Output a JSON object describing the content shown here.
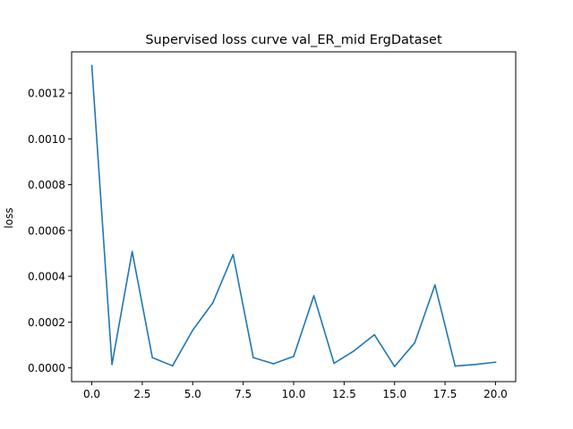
{
  "chart_data": {
    "type": "line",
    "title": "Supervised loss curve val_ER_mid ErgDataset",
    "xlabel": "",
    "ylabel": "loss",
    "xlim": [
      -1,
      21
    ],
    "ylim": [
      -6e-05,
      0.00138
    ],
    "xticks": [
      0,
      2.5,
      5,
      7.5,
      10,
      12.5,
      15,
      17.5,
      20
    ],
    "xtick_labels": [
      "0.0",
      "2.5",
      "5.0",
      "7.5",
      "10.0",
      "12.5",
      "15.0",
      "17.5",
      "20.0"
    ],
    "yticks": [
      0,
      0.0002,
      0.0004,
      0.0006,
      0.0008,
      0.001,
      0.0012
    ],
    "ytick_labels": [
      "0.0000",
      "0.0002",
      "0.0004",
      "0.0006",
      "0.0008",
      "0.0010",
      "0.0012"
    ],
    "grid": false,
    "legend": false,
    "series": [
      {
        "color": "#1f77b4",
        "x": [
          0,
          1,
          2,
          3,
          4,
          5,
          6,
          7,
          8,
          9,
          10,
          11,
          12,
          13,
          14,
          15,
          16,
          17,
          18,
          19,
          20
        ],
        "values": [
          0.00132,
          1.5e-05,
          0.000508,
          4.5e-05,
          9e-06,
          0.000165,
          0.000285,
          0.000495,
          4.5e-05,
          1.8e-05,
          5e-05,
          0.000315,
          2e-05,
          7.5e-05,
          0.000145,
          6e-06,
          0.00011,
          0.000362,
          8e-06,
          1.5e-05,
          2.5e-05
        ]
      }
    ]
  }
}
